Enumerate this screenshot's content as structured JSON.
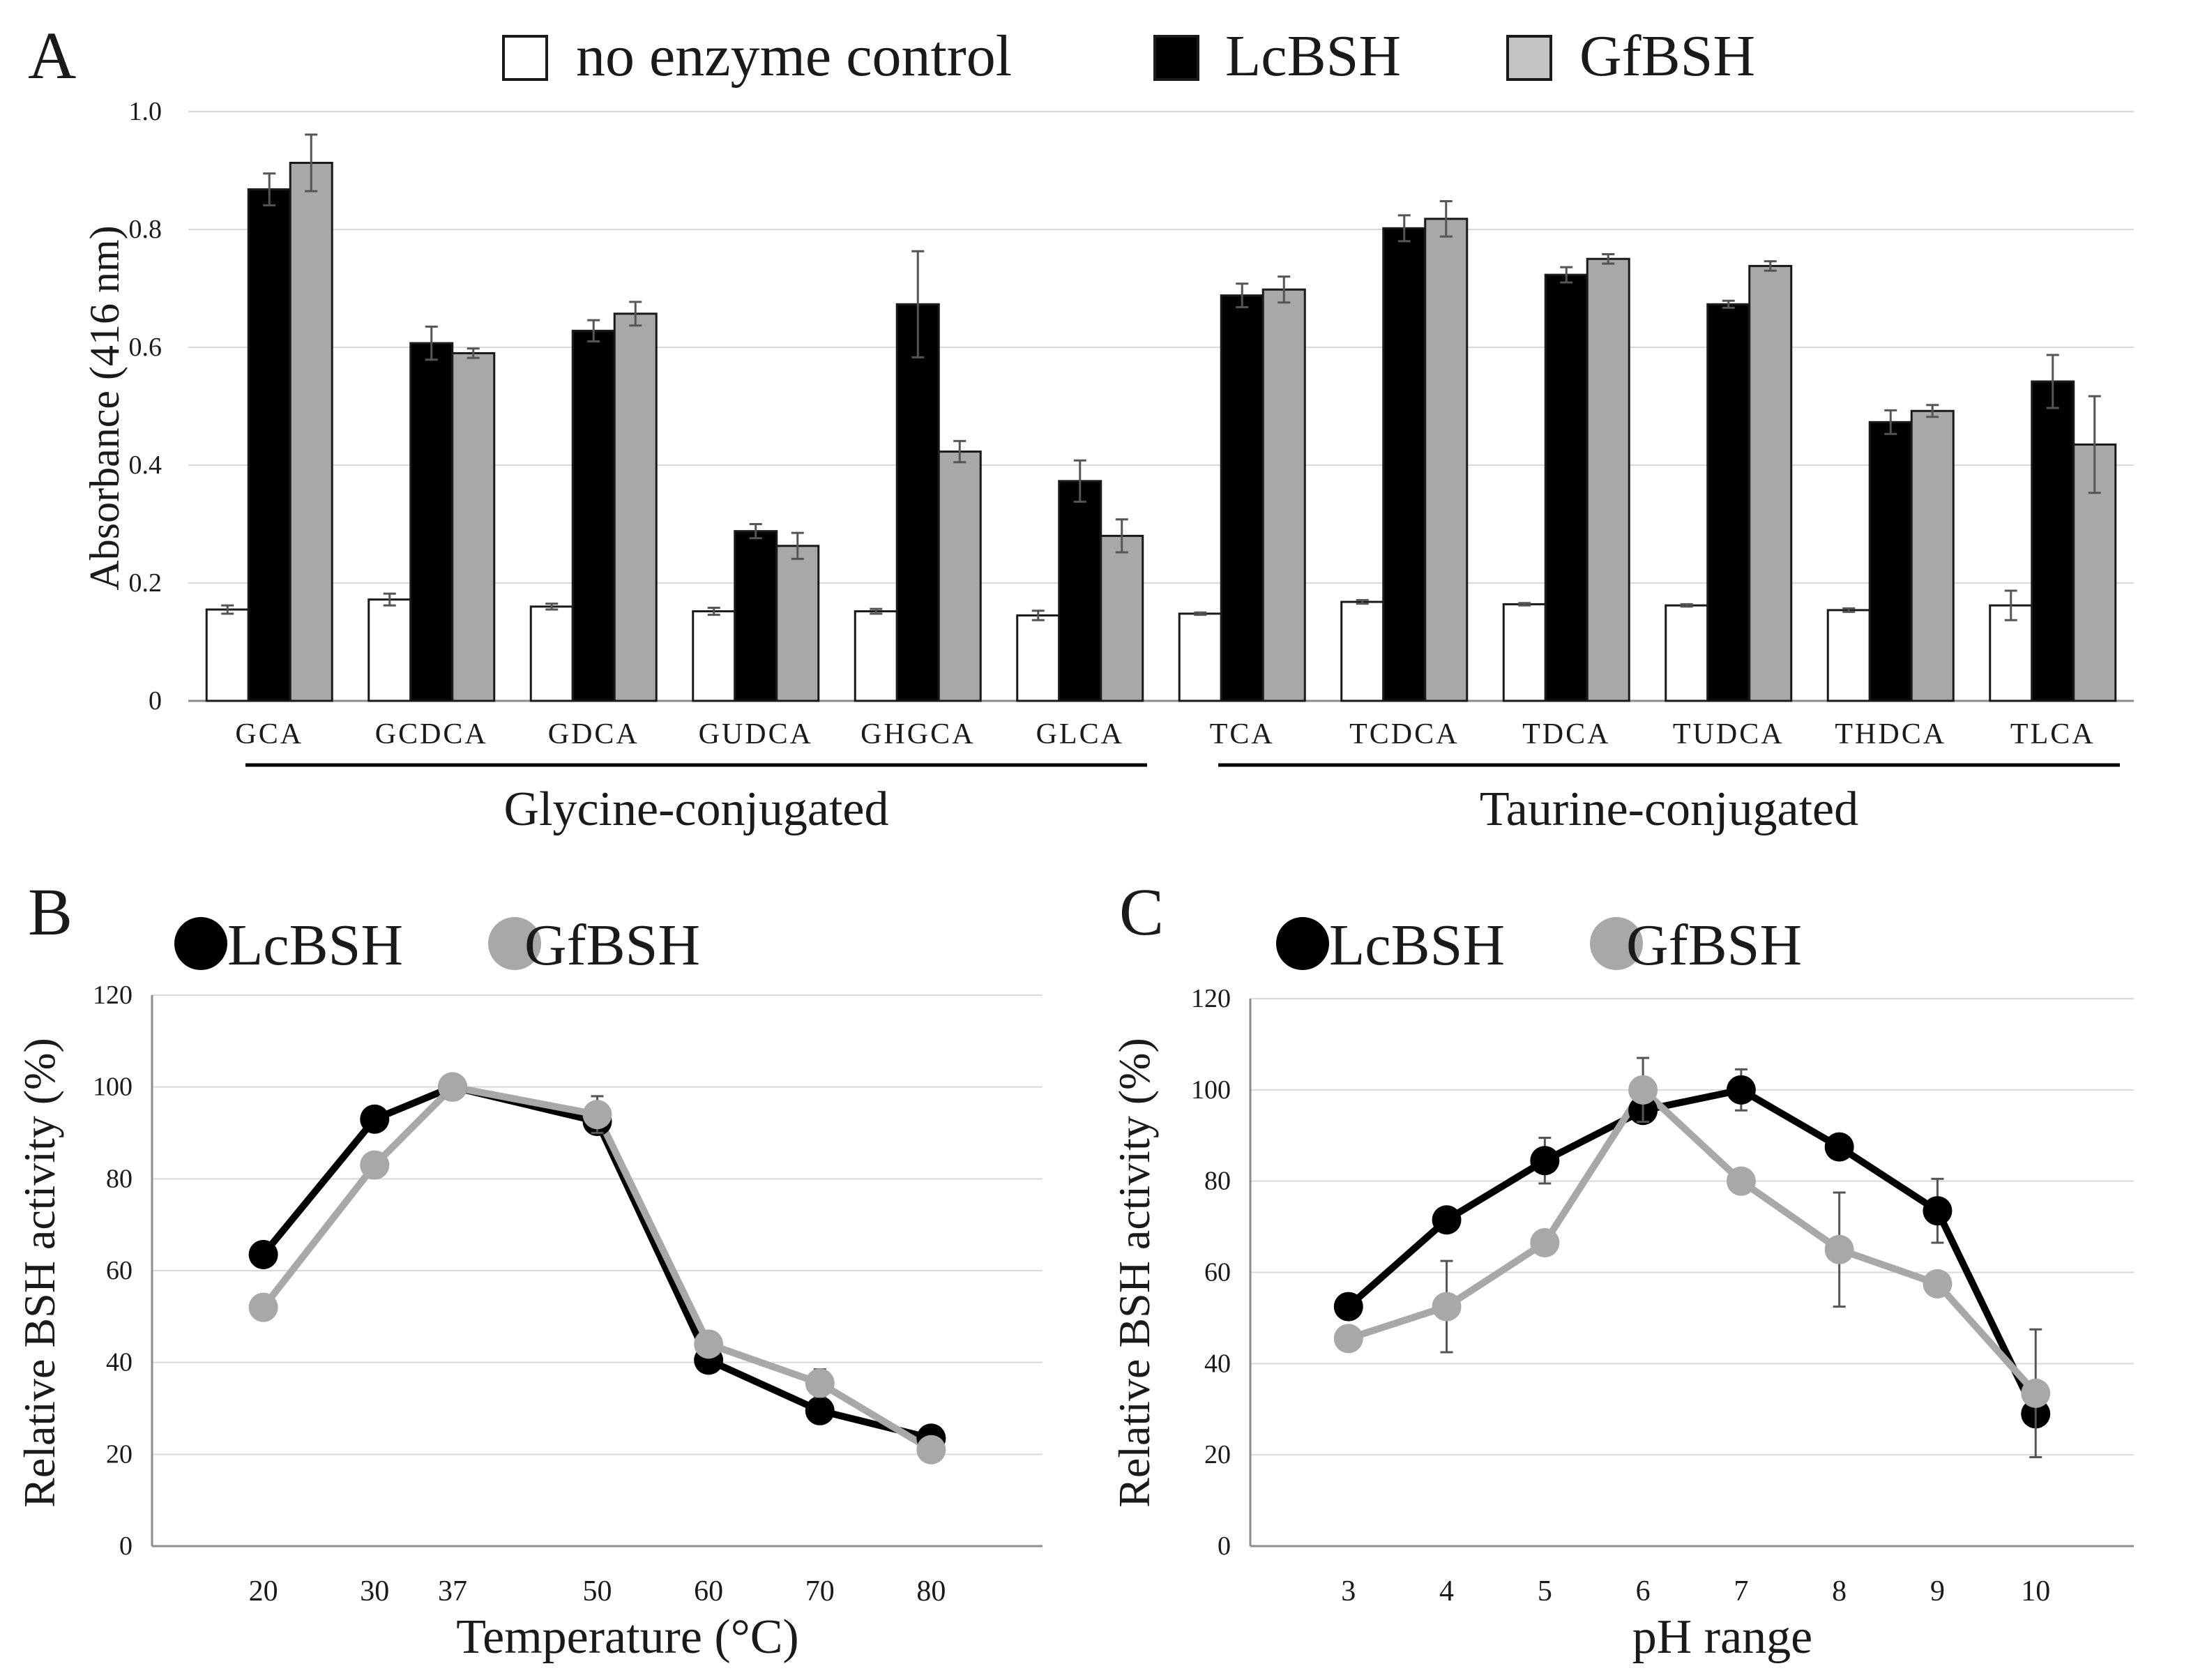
{
  "panels": {
    "a": {
      "letter": "A"
    },
    "b": {
      "letter": "B"
    },
    "c": {
      "letter": "C"
    }
  },
  "colors": {
    "no_enzyme": "#ffffff",
    "lcbsh": "#000000",
    "gfbsh": "#a8a8a8",
    "gfbsh_line": "#a8a8a8",
    "grid": "#d9d9d9",
    "axis": "#8c8c8c",
    "text": "#1a1a1a",
    "error": "#555555"
  },
  "chart_data": [
    {
      "id": "A",
      "type": "bar",
      "ylabel": "Absorbance (416 nm)",
      "ylim": [
        0,
        1.0
      ],
      "yticks": [
        0,
        0.2,
        0.4,
        0.6,
        0.8,
        1.0
      ],
      "ytick_labels": [
        "0",
        "0.2",
        "0.4",
        "0.6",
        "0.8",
        "1.0"
      ],
      "grid": true,
      "legend_position": "top",
      "categories": [
        "GCA",
        "GCDCA",
        "GDCA",
        "GUDCA",
        "GHGCA",
        "GLCA",
        "TCA",
        "TCDCA",
        "TDCA",
        "TUDCA",
        "THDCA",
        "TLCA"
      ],
      "groups": [
        {
          "label": "Glycine-conjugated",
          "categories": [
            "GCA",
            "GCDCA",
            "GDCA",
            "GUDCA",
            "GHGCA",
            "GLCA"
          ]
        },
        {
          "label": "Taurine-conjugated",
          "categories": [
            "TCA",
            "TCDCA",
            "TDCA",
            "TUDCA",
            "THDCA",
            "TLCA"
          ]
        }
      ],
      "series": [
        {
          "name": "no enzyme control",
          "values": [
            0.155,
            0.172,
            0.16,
            0.152,
            0.152,
            0.145,
            0.148,
            0.168,
            0.164,
            0.162,
            0.154,
            0.162
          ],
          "errors": [
            0.007,
            0.01,
            0.005,
            0.006,
            0.004,
            0.008,
            0.002,
            0.003,
            0.002,
            0.002,
            0.003,
            0.025
          ]
        },
        {
          "name": "LcBSH",
          "values": [
            0.868,
            0.607,
            0.628,
            0.288,
            0.673,
            0.373,
            0.688,
            0.802,
            0.723,
            0.673,
            0.473,
            0.542
          ],
          "errors": [
            0.027,
            0.028,
            0.018,
            0.012,
            0.09,
            0.035,
            0.02,
            0.022,
            0.013,
            0.006,
            0.02,
            0.045
          ]
        },
        {
          "name": "GfBSH",
          "values": [
            0.913,
            0.59,
            0.657,
            0.263,
            0.423,
            0.28,
            0.698,
            0.818,
            0.75,
            0.738,
            0.492,
            0.435
          ],
          "errors": [
            0.048,
            0.008,
            0.02,
            0.022,
            0.018,
            0.028,
            0.022,
            0.03,
            0.008,
            0.008,
            0.01,
            0.082
          ]
        }
      ]
    },
    {
      "id": "B",
      "type": "line",
      "xlabel": "Temperature (°C)",
      "ylabel": "Relative BSH activity (%)",
      "x": [
        20,
        30,
        37,
        50,
        60,
        70,
        80
      ],
      "xtick_labels": [
        "20",
        "30",
        "37",
        "50",
        "60",
        "70",
        "80"
      ],
      "xlim": [
        10,
        90
      ],
      "ylim": [
        0,
        120
      ],
      "yticks": [
        0,
        20,
        40,
        60,
        80,
        100,
        120
      ],
      "ytick_labels": [
        "0",
        "20",
        "40",
        "60",
        "80",
        "100",
        "120"
      ],
      "grid": true,
      "legend_position": "top-left",
      "series": [
        {
          "name": "LcBSH",
          "values": [
            63.5,
            93,
            100,
            92.5,
            40.5,
            29.5,
            23.5
          ],
          "errors": [
            0,
            0,
            0,
            0,
            0,
            0,
            0
          ]
        },
        {
          "name": "GfBSH",
          "values": [
            52,
            83,
            100,
            94,
            44,
            35.5,
            21
          ],
          "errors": [
            0,
            0,
            0,
            4,
            0,
            3,
            0
          ]
        }
      ]
    },
    {
      "id": "C",
      "type": "line",
      "xlabel": "pH range",
      "ylabel": "Relative BSH activity (%)",
      "x": [
        3,
        4,
        5,
        6,
        7,
        8,
        9,
        10
      ],
      "xtick_labels": [
        "3",
        "4",
        "5",
        "6",
        "7",
        "8",
        "9",
        "10"
      ],
      "xlim": [
        2,
        11
      ],
      "ylim": [
        0,
        120
      ],
      "yticks": [
        0,
        20,
        40,
        60,
        80,
        100,
        120
      ],
      "ytick_labels": [
        "0",
        "20",
        "40",
        "60",
        "80",
        "100",
        "120"
      ],
      "grid": true,
      "legend_position": "top-left",
      "series": [
        {
          "name": "LcBSH",
          "values": [
            52.5,
            71.5,
            84.5,
            95.5,
            100,
            87.5,
            73.5,
            29
          ],
          "errors": [
            0,
            0,
            5,
            0,
            4.5,
            0,
            7,
            0
          ]
        },
        {
          "name": "GfBSH",
          "values": [
            45.5,
            52.5,
            66.5,
            100,
            80,
            65,
            57.5,
            33.5
          ],
          "errors": [
            0,
            10,
            0,
            7,
            0,
            12.5,
            0,
            14
          ]
        }
      ]
    }
  ]
}
